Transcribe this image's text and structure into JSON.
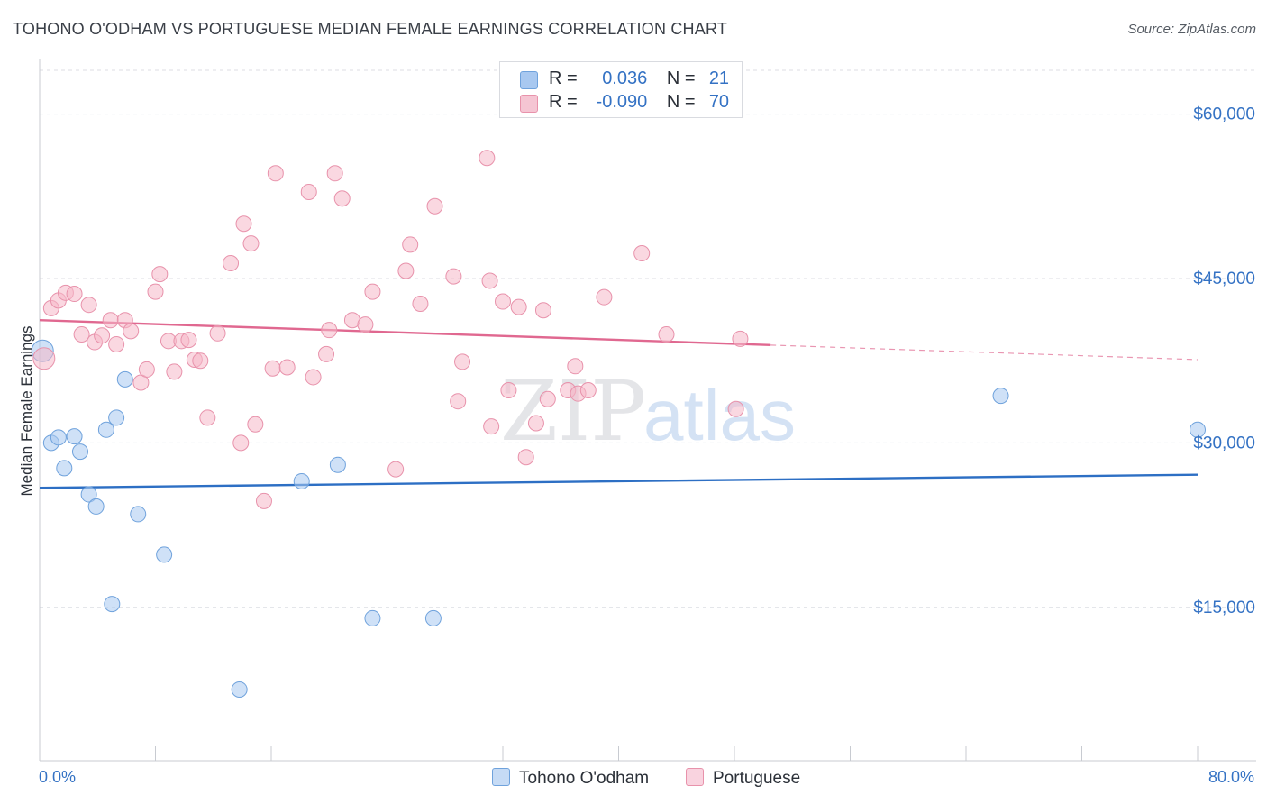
{
  "header": {
    "title": "TOHONO O'ODHAM VS PORTUGUESE MEDIAN FEMALE EARNINGS CORRELATION CHART",
    "source": "Source: ZipAtlas.com"
  },
  "watermark": {
    "zip": "ZIP",
    "atlas": "atlas"
  },
  "stats_legend": {
    "rows": [
      {
        "r_label": "R =",
        "r_value": "0.036",
        "n_label": "N =",
        "n_value": "21",
        "color": "#a8c8f0"
      },
      {
        "r_label": "R =",
        "r_value": "-0.090",
        "n_label": "N =",
        "n_value": "70",
        "color": "#f5b8c8"
      }
    ]
  },
  "chart_data": {
    "type": "scatter",
    "title": "TOHONO O'ODHAM VS PORTUGUESE MEDIAN FEMALE EARNINGS CORRELATION CHART",
    "xlabel": "",
    "ylabel": "Median Female Earnings",
    "xlim": [
      0,
      80
    ],
    "ylim": [
      1000,
      64000
    ],
    "x_tick_labels": [
      "0.0%",
      "80.0%"
    ],
    "y_ticks": [
      15000,
      30000,
      45000,
      60000
    ],
    "y_tick_labels": [
      "$15,000",
      "$30,000",
      "$45,000",
      "$60,000"
    ],
    "grid": true,
    "legend_position": "bottom-center",
    "series": [
      {
        "name": "Tohono O'odham",
        "color": "#a8c8f0",
        "stroke": "#6fa2dc",
        "trend_color": "#2d6fc4",
        "trend": {
          "x": [
            0,
            80
          ],
          "y": [
            25900,
            27100
          ],
          "solid_until": 80
        },
        "points": [
          [
            0.2,
            38400
          ],
          [
            0.8,
            30000
          ],
          [
            1.3,
            30500
          ],
          [
            1.7,
            27700
          ],
          [
            2.4,
            30600
          ],
          [
            2.8,
            29200
          ],
          [
            3.4,
            25300
          ],
          [
            3.9,
            24200
          ],
          [
            4.6,
            31200
          ],
          [
            5.3,
            32300
          ],
          [
            5.9,
            35800
          ],
          [
            6.8,
            23500
          ],
          [
            8.6,
            19800
          ],
          [
            5.0,
            15300
          ],
          [
            13.8,
            7500
          ],
          [
            18.1,
            26500
          ],
          [
            20.6,
            28000
          ],
          [
            23.0,
            14000
          ],
          [
            27.2,
            14000
          ],
          [
            66.4,
            34300
          ],
          [
            80.0,
            31200
          ]
        ]
      },
      {
        "name": "Portuguese",
        "color": "#f5b8c8",
        "stroke": "#e892ab",
        "trend_color": "#e06890",
        "trend": {
          "x": [
            0,
            80
          ],
          "y": [
            41200,
            37600
          ],
          "solid_until": 50.5
        },
        "points": [
          [
            0.3,
            37700
          ],
          [
            0.8,
            42300
          ],
          [
            1.3,
            43000
          ],
          [
            1.8,
            43700
          ],
          [
            2.4,
            43600
          ],
          [
            2.9,
            39900
          ],
          [
            3.4,
            42600
          ],
          [
            3.8,
            39200
          ],
          [
            4.3,
            39800
          ],
          [
            4.9,
            41200
          ],
          [
            5.3,
            39000
          ],
          [
            5.9,
            41200
          ],
          [
            6.3,
            40200
          ],
          [
            7.0,
            35500
          ],
          [
            7.4,
            36700
          ],
          [
            8.0,
            43800
          ],
          [
            8.3,
            45400
          ],
          [
            8.9,
            39300
          ],
          [
            9.3,
            36500
          ],
          [
            9.8,
            39300
          ],
          [
            10.3,
            39400
          ],
          [
            10.7,
            37600
          ],
          [
            11.1,
            37500
          ],
          [
            11.6,
            32300
          ],
          [
            12.3,
            40000
          ],
          [
            13.2,
            46400
          ],
          [
            13.9,
            30000
          ],
          [
            14.1,
            50000
          ],
          [
            14.6,
            48200
          ],
          [
            14.9,
            31700
          ],
          [
            15.5,
            24700
          ],
          [
            16.1,
            36800
          ],
          [
            16.3,
            54600
          ],
          [
            17.1,
            36900
          ],
          [
            18.6,
            52900
          ],
          [
            18.9,
            36000
          ],
          [
            19.8,
            38100
          ],
          [
            20.0,
            40300
          ],
          [
            20.4,
            54600
          ],
          [
            20.9,
            52300
          ],
          [
            21.6,
            41200
          ],
          [
            22.5,
            40800
          ],
          [
            23.0,
            43800
          ],
          [
            24.6,
            27600
          ],
          [
            25.3,
            45700
          ],
          [
            25.6,
            48100
          ],
          [
            26.3,
            42700
          ],
          [
            27.3,
            51600
          ],
          [
            28.6,
            45200
          ],
          [
            28.9,
            33800
          ],
          [
            29.2,
            37400
          ],
          [
            30.9,
            56000
          ],
          [
            31.1,
            44800
          ],
          [
            31.2,
            31500
          ],
          [
            32.0,
            42900
          ],
          [
            32.4,
            34800
          ],
          [
            33.1,
            42400
          ],
          [
            33.6,
            28700
          ],
          [
            34.3,
            31800
          ],
          [
            34.8,
            42100
          ],
          [
            35.1,
            34000
          ],
          [
            36.5,
            34800
          ],
          [
            37.0,
            37000
          ],
          [
            37.2,
            34500
          ],
          [
            37.9,
            34800
          ],
          [
            39.0,
            43300
          ],
          [
            41.6,
            47300
          ],
          [
            43.3,
            39900
          ],
          [
            48.1,
            33100
          ],
          [
            48.4,
            39500
          ]
        ]
      }
    ]
  }
}
